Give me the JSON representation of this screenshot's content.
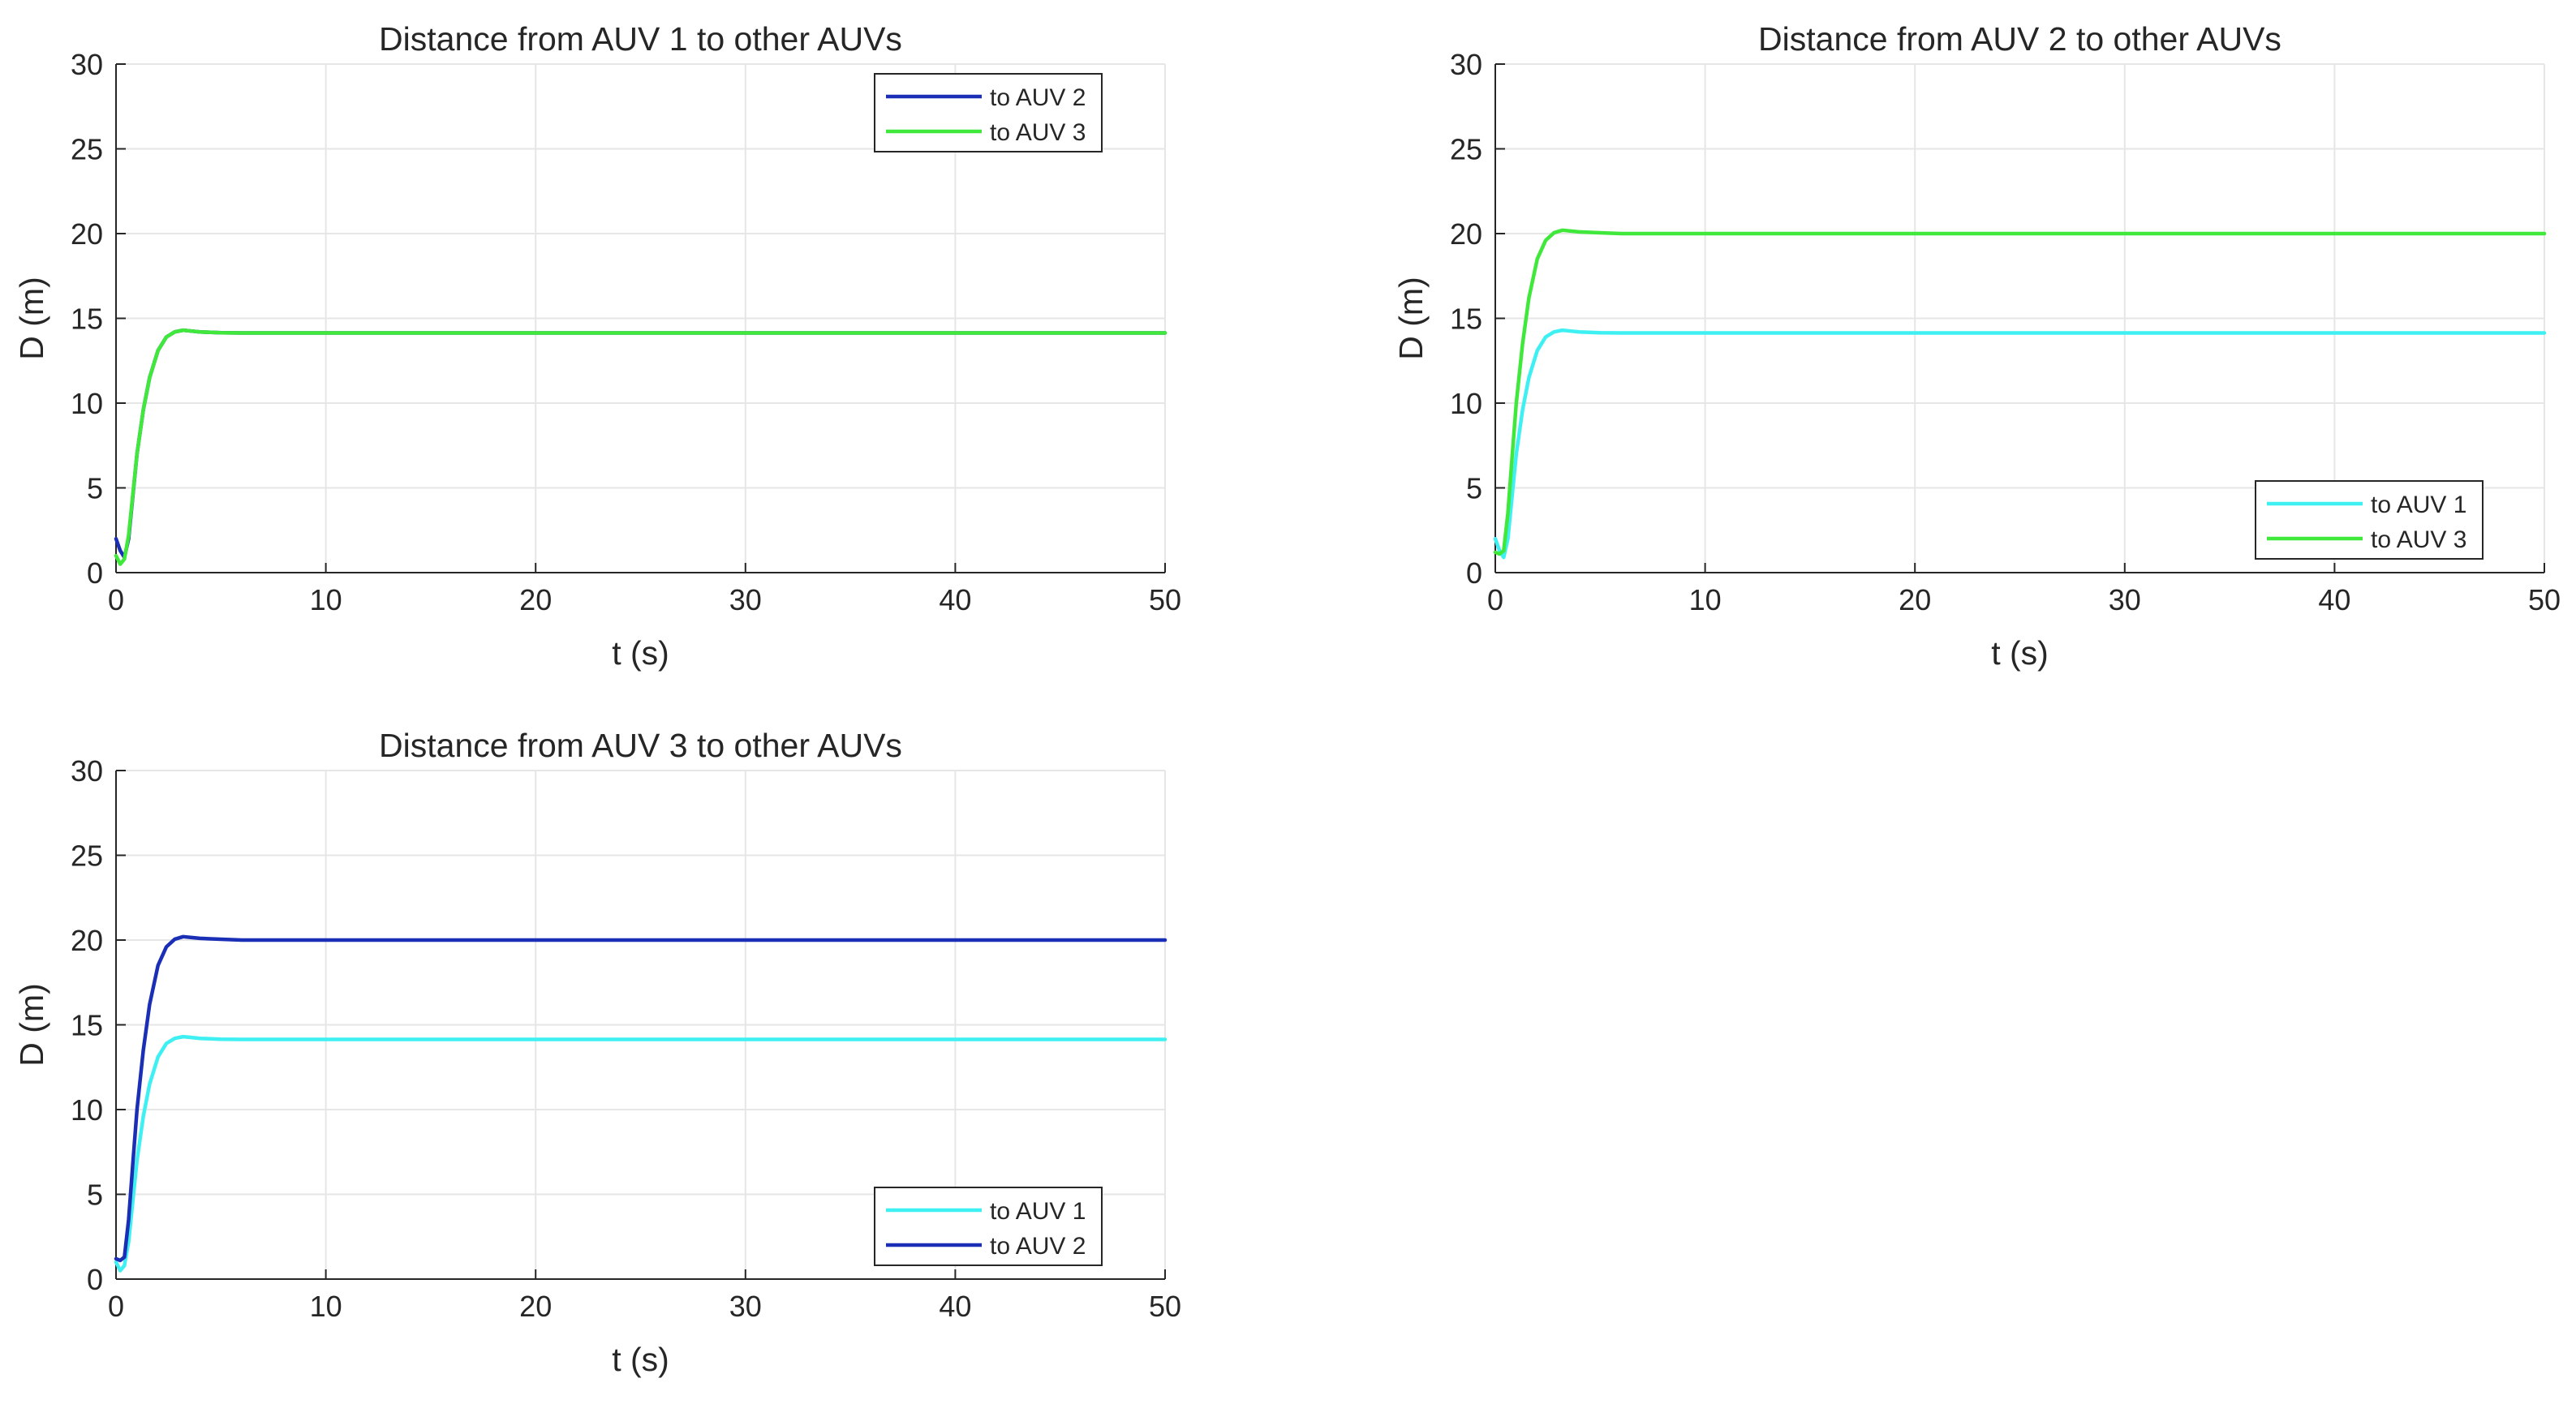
{
  "colors": {
    "auv1": "#3ff0f2",
    "auv2": "#1a2fb6",
    "auv3": "#3fe83a",
    "grid": "#e6e6e6",
    "axis": "#262626",
    "background": "#ffffff"
  },
  "chart_data": [
    {
      "type": "line",
      "title": "Distance from AUV 1 to other AUVs",
      "xlabel": "t (s)",
      "ylabel": "D (m)",
      "xlim": [
        0,
        50
      ],
      "ylim": [
        0,
        30
      ],
      "xticks": [
        0,
        10,
        20,
        30,
        40,
        50
      ],
      "yticks": [
        0,
        5,
        10,
        15,
        20,
        25,
        30
      ],
      "x_tick_labels": [
        "0",
        "10",
        "20",
        "30",
        "40",
        "50"
      ],
      "y_tick_labels": [
        "0",
        "5",
        "10",
        "15",
        "20",
        "25",
        "30"
      ],
      "grid": true,
      "legend_position": "top-right",
      "series": [
        {
          "name": "to AUV 2",
          "color_key": "auv2",
          "x": [
            0,
            0.2,
            0.4,
            0.6,
            0.8,
            1.0,
            1.3,
            1.6,
            2.0,
            2.4,
            2.8,
            3.2,
            3.6,
            4.0,
            5.0,
            6.0,
            8.0,
            10,
            20,
            30,
            40,
            50
          ],
          "y": [
            2.0,
            1.3,
            0.9,
            2.0,
            4.5,
            7.0,
            9.6,
            11.5,
            13.1,
            13.9,
            14.2,
            14.3,
            14.25,
            14.2,
            14.15,
            14.14,
            14.14,
            14.14,
            14.14,
            14.14,
            14.14,
            14.14
          ]
        },
        {
          "name": "to AUV 3",
          "color_key": "auv3",
          "x": [
            0,
            0.2,
            0.4,
            0.6,
            0.8,
            1.0,
            1.3,
            1.6,
            2.0,
            2.4,
            2.8,
            3.2,
            3.6,
            4.0,
            5.0,
            6.0,
            8.0,
            10,
            20,
            30,
            40,
            50
          ],
          "y": [
            1.0,
            0.5,
            0.8,
            2.2,
            4.6,
            7.0,
            9.6,
            11.5,
            13.1,
            13.9,
            14.2,
            14.3,
            14.25,
            14.2,
            14.15,
            14.14,
            14.14,
            14.14,
            14.14,
            14.14,
            14.14,
            14.14
          ]
        }
      ]
    },
    {
      "type": "line",
      "title": "Distance from AUV 2 to other AUVs",
      "xlabel": "t (s)",
      "ylabel": "D (m)",
      "xlim": [
        0,
        50
      ],
      "ylim": [
        0,
        30
      ],
      "xticks": [
        0,
        10,
        20,
        30,
        40,
        50
      ],
      "yticks": [
        0,
        5,
        10,
        15,
        20,
        25,
        30
      ],
      "x_tick_labels": [
        "0",
        "10",
        "20",
        "30",
        "40",
        "50"
      ],
      "y_tick_labels": [
        "0",
        "5",
        "10",
        "15",
        "20",
        "25",
        "30"
      ],
      "grid": true,
      "legend_position": "bottom-right",
      "series": [
        {
          "name": "to AUV 1",
          "color_key": "auv1",
          "x": [
            0,
            0.2,
            0.4,
            0.6,
            0.8,
            1.0,
            1.3,
            1.6,
            2.0,
            2.4,
            2.8,
            3.2,
            3.6,
            4.0,
            5.0,
            6.0,
            8.0,
            10,
            20,
            30,
            40,
            50
          ],
          "y": [
            2.0,
            1.3,
            0.9,
            2.0,
            4.5,
            7.0,
            9.6,
            11.5,
            13.1,
            13.9,
            14.2,
            14.3,
            14.25,
            14.2,
            14.15,
            14.14,
            14.14,
            14.14,
            14.14,
            14.14,
            14.14,
            14.14
          ]
        },
        {
          "name": "to AUV 3",
          "color_key": "auv3",
          "x": [
            0,
            0.2,
            0.4,
            0.6,
            0.8,
            1.0,
            1.3,
            1.6,
            2.0,
            2.4,
            2.8,
            3.2,
            3.6,
            4.0,
            5.0,
            6.0,
            8.0,
            10,
            20,
            30,
            40,
            50
          ],
          "y": [
            1.2,
            1.1,
            1.3,
            3.5,
            6.8,
            10.0,
            13.5,
            16.2,
            18.5,
            19.6,
            20.05,
            20.2,
            20.15,
            20.1,
            20.05,
            20.0,
            20.0,
            20.0,
            20.0,
            20.0,
            20.0,
            20.0
          ]
        }
      ]
    },
    {
      "type": "line",
      "title": "Distance from AUV 3 to other AUVs",
      "xlabel": "t (s)",
      "ylabel": "D (m)",
      "xlim": [
        0,
        50
      ],
      "ylim": [
        0,
        30
      ],
      "xticks": [
        0,
        10,
        20,
        30,
        40,
        50
      ],
      "yticks": [
        0,
        5,
        10,
        15,
        20,
        25,
        30
      ],
      "x_tick_labels": [
        "0",
        "10",
        "20",
        "30",
        "40",
        "50"
      ],
      "y_tick_labels": [
        "0",
        "5",
        "10",
        "15",
        "20",
        "25",
        "30"
      ],
      "grid": true,
      "legend_position": "bottom-right",
      "series": [
        {
          "name": "to AUV 1",
          "color_key": "auv1",
          "x": [
            0,
            0.2,
            0.4,
            0.6,
            0.8,
            1.0,
            1.3,
            1.6,
            2.0,
            2.4,
            2.8,
            3.2,
            3.6,
            4.0,
            5.0,
            6.0,
            8.0,
            10,
            20,
            30,
            40,
            50
          ],
          "y": [
            1.0,
            0.5,
            0.8,
            2.2,
            4.6,
            7.0,
            9.6,
            11.5,
            13.1,
            13.9,
            14.2,
            14.3,
            14.25,
            14.2,
            14.15,
            14.14,
            14.14,
            14.14,
            14.14,
            14.14,
            14.14,
            14.14
          ]
        },
        {
          "name": "to AUV 2",
          "color_key": "auv2",
          "x": [
            0,
            0.2,
            0.4,
            0.6,
            0.8,
            1.0,
            1.3,
            1.6,
            2.0,
            2.4,
            2.8,
            3.2,
            3.6,
            4.0,
            5.0,
            6.0,
            8.0,
            10,
            20,
            30,
            40,
            50
          ],
          "y": [
            1.2,
            1.1,
            1.3,
            3.5,
            6.8,
            10.0,
            13.5,
            16.2,
            18.5,
            19.6,
            20.05,
            20.2,
            20.15,
            20.1,
            20.05,
            20.0,
            20.0,
            20.0,
            20.0,
            20.0,
            20.0,
            20.0
          ]
        }
      ]
    }
  ]
}
